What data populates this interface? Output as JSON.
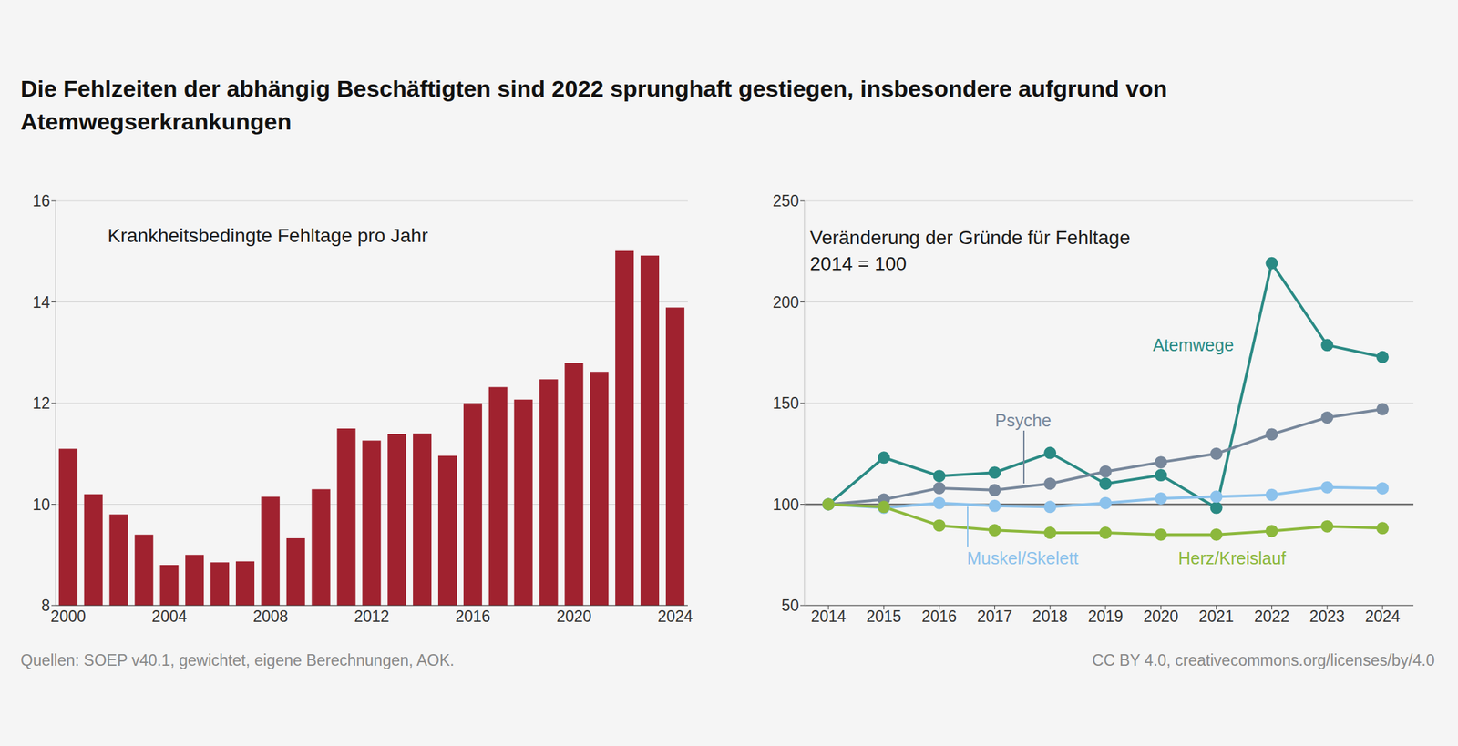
{
  "title": "Die Fehlzeiten der abhängig Beschäftigten sind 2022 sprunghaft gestiegen, insbesondere aufgrund von Atemwegserkrankungen",
  "chart_data": [
    {
      "type": "bar",
      "title": "Krankheitsbedingte Fehltage pro Jahr",
      "categories": [
        "2000",
        null,
        null,
        null,
        "2004",
        null,
        null,
        null,
        "2008",
        null,
        null,
        null,
        "2012",
        null,
        null,
        null,
        "2016",
        null,
        null,
        null,
        "2020",
        null,
        null,
        null,
        "2024"
      ],
      "values": [
        11.1,
        10.2,
        9.8,
        9.4,
        8.8,
        9.0,
        8.85,
        8.87,
        10.15,
        9.33,
        10.3,
        11.5,
        11.26,
        11.39,
        11.4,
        10.96,
        12.0,
        12.32,
        12.07,
        12.47,
        12.8,
        12.62,
        15.01,
        14.92,
        13.89
      ],
      "color": "#a0222f",
      "ylim": [
        8,
        16
      ],
      "yticks": [
        8,
        10,
        12,
        14,
        16
      ],
      "grid": true
    },
    {
      "type": "line",
      "title": "Veränderung der Gründe für Fehltage",
      "subtitle": "2014 = 100",
      "categories": [
        "2014",
        "2015",
        "2016",
        "2017",
        "2018",
        "2019",
        "2020",
        "2021",
        "2022",
        "2023",
        "2024"
      ],
      "series": [
        {
          "name": "Atemwege",
          "color": "#2a8a84",
          "values": [
            100,
            123.1,
            114,
            115.7,
            125.4,
            110.2,
            114.4,
            98.3,
            219.2,
            178.7,
            172.8
          ]
        },
        {
          "name": "Psyche",
          "color": "#77879b",
          "values": [
            100,
            102.4,
            108,
            107,
            110.2,
            116.2,
            120.8,
            125,
            134.6,
            142.9,
            147
          ]
        },
        {
          "name": "Muskel/Skelett",
          "color": "#8cc2ec",
          "values": [
            100,
            98.3,
            100.6,
            99.2,
            98.7,
            100.6,
            102.9,
            103.8,
            104.7,
            108.4,
            107.9
          ]
        },
        {
          "name": "Herz/Kreislauf",
          "color": "#8cb83c",
          "values": [
            100,
            98.7,
            89.5,
            87.2,
            85.9,
            85.9,
            85,
            85,
            86.8,
            89.1,
            88.2
          ]
        }
      ],
      "ylim": [
        50,
        250
      ],
      "yticks": [
        50,
        100,
        150,
        200,
        250
      ],
      "grid": true,
      "baseline": 100,
      "marker": "circle"
    }
  ],
  "source": "Quellen: SOEP v40.1, gewichtet, eigene Berechnungen, AOK.",
  "license": "CC BY 4.0, creativecommons.org/licenses/by/4.0"
}
